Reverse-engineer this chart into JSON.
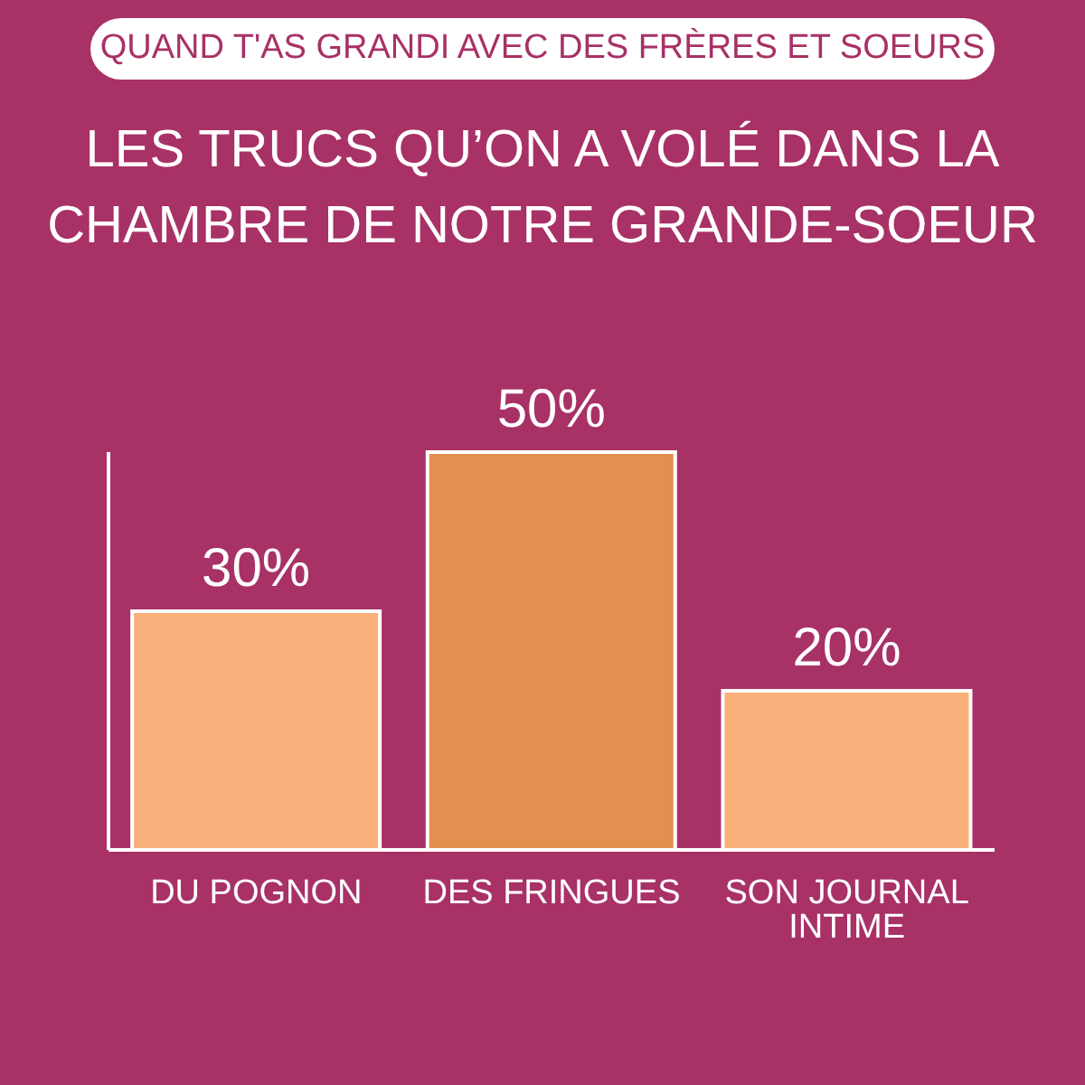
{
  "chart_data": {
    "type": "bar",
    "subtitle": "QUAND T'AS GRANDI AVEC DES FRÈRES ET SOEURS",
    "title": "LES TRUCS QU’ON A VOLÉ DANS LA CHAMBRE DE NOTRE GRANDE-SOEUR",
    "categories": [
      "DU POGNON",
      "DES FRINGUES",
      "SON JOURNAL INTIME"
    ],
    "values": [
      30,
      50,
      20
    ],
    "colors": [
      "#f9b07a",
      "#e38f50",
      "#f9b07a"
    ],
    "value_labels": [
      "30%",
      "50%",
      "20%"
    ],
    "tick_labels": "x"
  }
}
